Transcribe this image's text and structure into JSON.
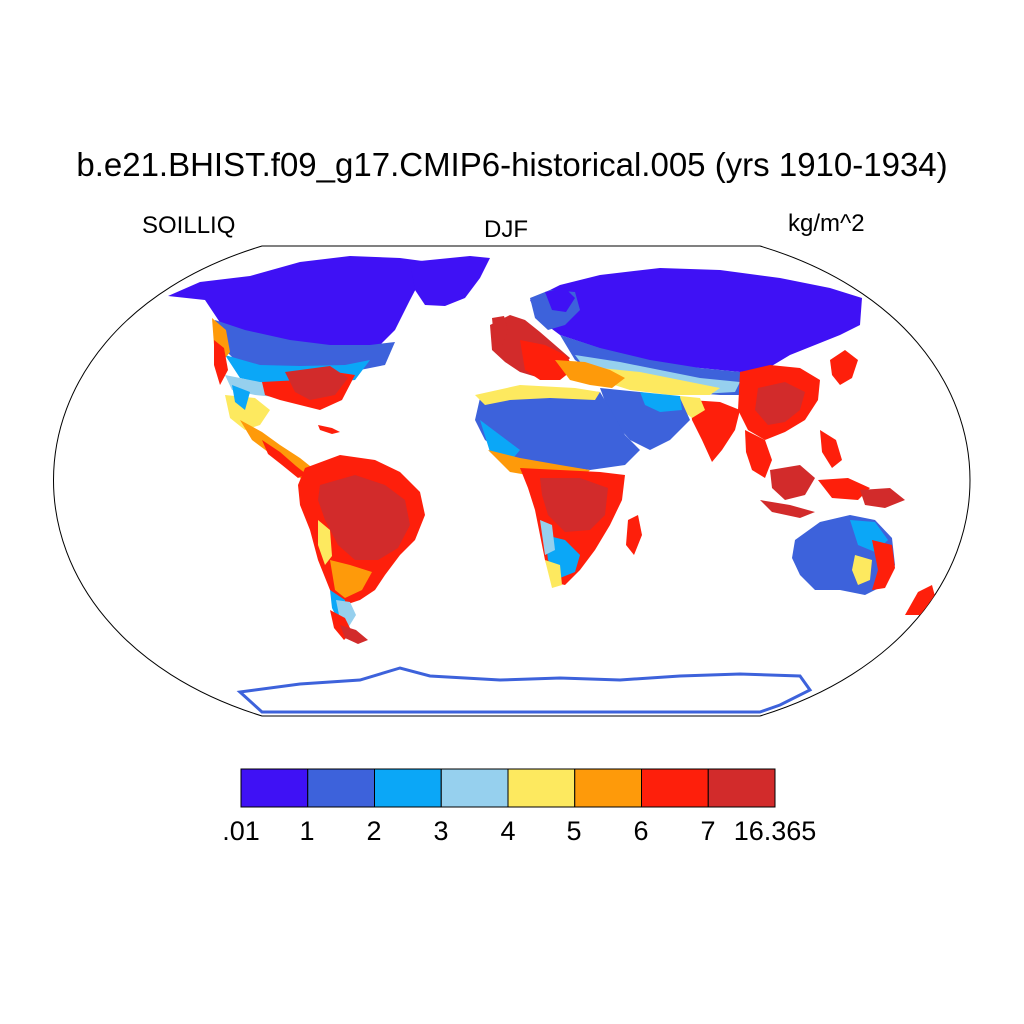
{
  "title": "b.e21.BHIST.f09_g17.CMIP6-historical.005 (yrs 1910-1934)",
  "variable": "SOILLIQ",
  "season": "DJF",
  "units": "kg/m^2",
  "colorbar": {
    "levels": [
      ".01",
      "1",
      "2",
      "3",
      "4",
      "5",
      "6",
      "7",
      "16.365"
    ],
    "colors": [
      "#3f11f5",
      "#3d62db",
      "#0ba7f7",
      "#96d0ee",
      "#fde95f",
      "#fe9a0a",
      "#fe1f0b",
      "#d22b2b"
    ]
  },
  "palette": {
    "outline": "#000000",
    "ocean": "#ffffff"
  }
}
